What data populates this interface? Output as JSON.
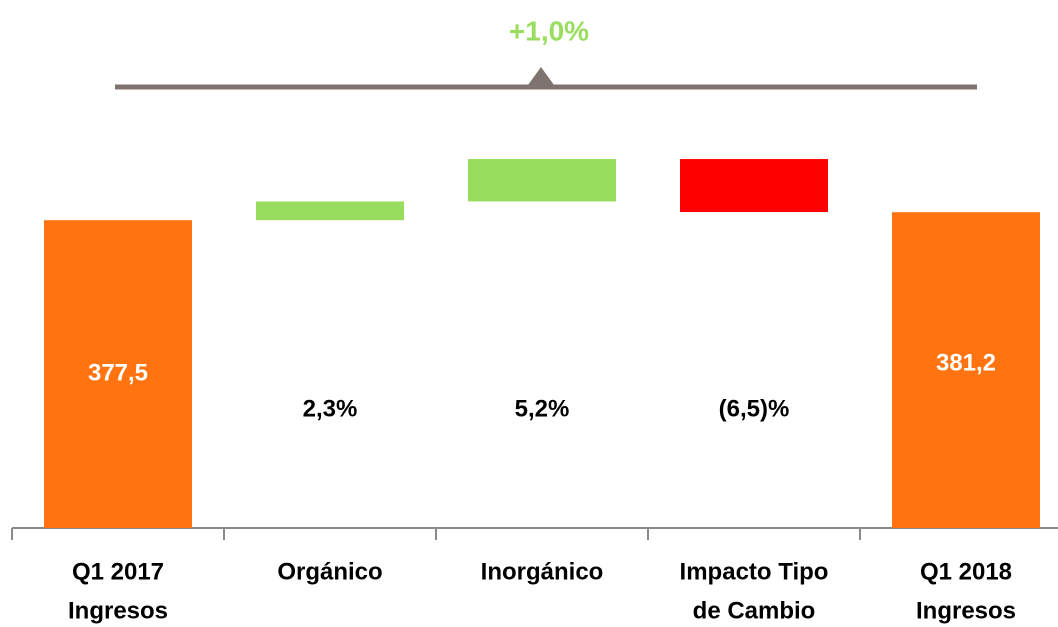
{
  "chart_data": {
    "type": "waterfall",
    "annotation": "+1,0%",
    "categories": [
      [
        "Q1 2017",
        "Ingresos"
      ],
      [
        "Orgánico"
      ],
      [
        "Inorgánico"
      ],
      [
        "Impacto Tipo",
        "de Cambio"
      ],
      [
        "Q1 2018",
        "Ingresos"
      ]
    ],
    "values": [
      377.5,
      2.3,
      5.2,
      -6.5,
      381.2
    ],
    "value_labels": [
      "377,5",
      "2,3%",
      "5,2%",
      "(6,5)%",
      "381,2"
    ],
    "kinds": [
      "total",
      "percent",
      "percent",
      "percent",
      "total"
    ],
    "colors": {
      "total": "#ff7410",
      "increase": "#99dd5f",
      "decrease": "#ff0000"
    },
    "ylim": [
      235,
      410
    ]
  }
}
